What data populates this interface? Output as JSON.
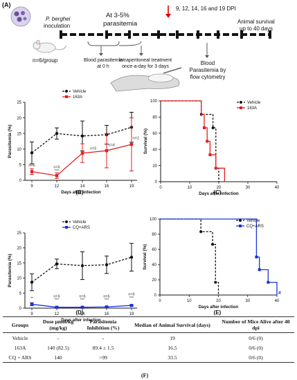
{
  "panel_a": {
    "label": "(A)",
    "inoculation_title": "P. berghei",
    "inoculation_sub": "inoculation",
    "parasitemia_title": "At 3-5%",
    "parasitemia_sub": "parasitemia",
    "dpi_label": "9, 12, 14, 16 and 19 DPI",
    "survival_line1": "Animal survival",
    "survival_line2": "up to 40 days",
    "group_size": "n=6/group",
    "blood_0h_line1": "Blood parasitemia",
    "blood_0h_line2": "at 0 h",
    "treatment_line1": "Intraperitoneal treatment",
    "treatment_line2": "once-a-day for 3 days",
    "blood_flow_line1": "Blood",
    "blood_flow_line2": "Parasitemia by",
    "blood_flow_line3": "flow cytometry"
  },
  "chart_data": [
    {
      "panel": "(B)",
      "type": "line",
      "ylabel": "Parasitemia (%)",
      "xlabel": "Days after infection",
      "x": [
        9,
        12,
        14,
        16,
        19
      ],
      "ylim": [
        0,
        25
      ],
      "yticks": [
        "0",
        "5",
        "10",
        "15",
        "20",
        "25"
      ],
      "series": [
        {
          "name": "Vehicle",
          "color": "#111111",
          "dashed": true,
          "values": [
            8.8,
            15.0,
            14.2,
            14.6,
            17.0
          ],
          "err": [
            3.5,
            1.8,
            4.8,
            3.0,
            4.8
          ]
        },
        {
          "name": "163A",
          "color": "#e02020",
          "dashed": false,
          "values": [
            2.8,
            1.5,
            8.7,
            9.5,
            11.5
          ],
          "err": [
            0.9,
            0.9,
            3.0,
            5.5,
            8.5
          ]
        }
      ],
      "annotations": [
        {
          "text": "n=6",
          "x": 9,
          "y": 4.4
        },
        {
          "text": "n=6",
          "x": 12,
          "y": 3.9
        },
        {
          "text": "***",
          "x": 12,
          "y": 2.6
        },
        {
          "text": "n=5",
          "x": 14.9,
          "y": 9.9
        },
        {
          "text": "n=4",
          "x": 16.6,
          "y": 11.0
        },
        {
          "text": "n=2",
          "x": 19.8,
          "y": 13.2
        }
      ]
    },
    {
      "panel": "(C)",
      "type": "line",
      "ylabel": "Survival (%)",
      "xlabel": "Days after infection",
      "xlim": [
        0,
        40
      ],
      "ylim": [
        0,
        100
      ],
      "xticks": [
        "0",
        "10",
        "20",
        "30",
        "40"
      ],
      "yticks": [
        "0",
        "20",
        "40",
        "60",
        "80",
        "100"
      ],
      "series": [
        {
          "name": "Vehicle",
          "color": "#111111",
          "dashed": true,
          "steps": [
            [
              0,
              100
            ],
            [
              14,
              100
            ],
            [
              14,
              83.3
            ],
            [
              18,
              83.3
            ],
            [
              18,
              66.7
            ],
            [
              19,
              66.7
            ],
            [
              19,
              16.7
            ],
            [
              20,
              16.7
            ],
            [
              20,
              0
            ]
          ],
          "points": [
            [
              14,
              83.3
            ],
            [
              18,
              66.7
            ],
            [
              19,
              16.7
            ]
          ]
        },
        {
          "name": "163A",
          "color": "#e02020",
          "dashed": false,
          "steps": [
            [
              0,
              100
            ],
            [
              14,
              100
            ],
            [
              14,
              83.3
            ],
            [
              15,
              83.3
            ],
            [
              15,
              66.7
            ],
            [
              16,
              66.7
            ],
            [
              16,
              50
            ],
            [
              17,
              50
            ],
            [
              17,
              33.3
            ],
            [
              19,
              33.3
            ],
            [
              19,
              16.7
            ],
            [
              22,
              16.7
            ],
            [
              22,
              0
            ]
          ],
          "points": [
            [
              15,
              66.7
            ],
            [
              16,
              50
            ],
            [
              17,
              33.3
            ],
            [
              19,
              16.7
            ]
          ]
        }
      ]
    },
    {
      "panel": "(D)",
      "type": "line",
      "ylabel": "Parasitemia (%)",
      "xlabel": "Days after infection",
      "x": [
        9,
        12,
        14,
        16,
        19
      ],
      "ylim": [
        0,
        25
      ],
      "yticks": [
        "0",
        "5",
        "10",
        "15",
        "20",
        "25"
      ],
      "series": [
        {
          "name": "Vehicle",
          "color": "#111111",
          "dashed": true,
          "values": [
            8.6,
            14.7,
            14.1,
            14.4,
            16.9
          ],
          "err": [
            2.8,
            1.6,
            4.6,
            2.9,
            4.6
          ]
        },
        {
          "name": "CQ+ARS",
          "color": "#1a33d6",
          "dashed": false,
          "values": [
            1.3,
            0.3,
            0.3,
            0.4,
            0.9
          ],
          "err": [
            0.5,
            0.1,
            0.1,
            0.1,
            0.2
          ]
        }
      ],
      "annotations": [
        {
          "text": "**",
          "x": 9,
          "y": 2.9
        },
        {
          "text": "n=6",
          "x": 12,
          "y": 3.6
        },
        {
          "text": "***",
          "x": 12,
          "y": 2.4
        },
        {
          "text": "n=6",
          "x": 14,
          "y": 3.6
        },
        {
          "text": "***",
          "x": 14,
          "y": 2.4
        },
        {
          "text": "n=6",
          "x": 16,
          "y": 3.6
        },
        {
          "text": "***",
          "x": 16,
          "y": 2.4
        },
        {
          "text": "n=6",
          "x": 19,
          "y": 4.2
        },
        {
          "text": "***",
          "x": 19,
          "y": 3.0
        }
      ]
    },
    {
      "panel": "(E)",
      "type": "line",
      "ylabel": "Survival (%)",
      "xlabel": "Days after infection",
      "xlim": [
        0,
        40
      ],
      "ylim": [
        0,
        100
      ],
      "xticks": [
        "0",
        "10",
        "20",
        "30",
        "40"
      ],
      "yticks": [
        "0",
        "20",
        "40",
        "60",
        "80",
        "100"
      ],
      "series": [
        {
          "name": "Vehicle",
          "color": "#111111",
          "dashed": true,
          "steps": [
            [
              0,
              100
            ],
            [
              14,
              100
            ],
            [
              14,
              83.3
            ],
            [
              18,
              83.3
            ],
            [
              18,
              66.7
            ],
            [
              19,
              66.7
            ],
            [
              19,
              16.7
            ],
            [
              20,
              16.7
            ],
            [
              20,
              0
            ]
          ],
          "points": [
            [
              14,
              83.3
            ],
            [
              18,
              66.7
            ],
            [
              19,
              16.7
            ]
          ]
        },
        {
          "name": "CQ+ARS",
          "color": "#1a33d6",
          "dashed": false,
          "steps": [
            [
              0,
              100
            ],
            [
              33,
              100
            ],
            [
              33,
              50
            ],
            [
              34,
              50
            ],
            [
              34,
              33.3
            ],
            [
              37,
              33.3
            ],
            [
              37,
              16.7
            ],
            [
              40,
              16.7
            ],
            [
              40,
              0
            ]
          ],
          "points": [
            [
              33,
              50
            ],
            [
              34,
              33.3
            ],
            [
              37,
              16.7
            ]
          ]
        }
      ],
      "marker_text": "#"
    }
  ],
  "table": {
    "headers": [
      "Groups",
      "Dose µmol/kg (mg/kg)",
      "Parasitemia Inhibition (%)",
      "Median of Animal Survival (days)",
      "Number of Mice Alive after 40 dpi"
    ],
    "rows": [
      [
        "Vehicle",
        "-",
        "-",
        "19",
        "0/6 (0)"
      ],
      [
        "163A",
        "140 (82.5)",
        "89.4 ± 1.5",
        "16.5",
        "0/6 (0)"
      ],
      [
        "CQ + ARS",
        "140",
        ">99",
        "33.5",
        "0/6 (0)"
      ]
    ],
    "label": "(F)"
  }
}
